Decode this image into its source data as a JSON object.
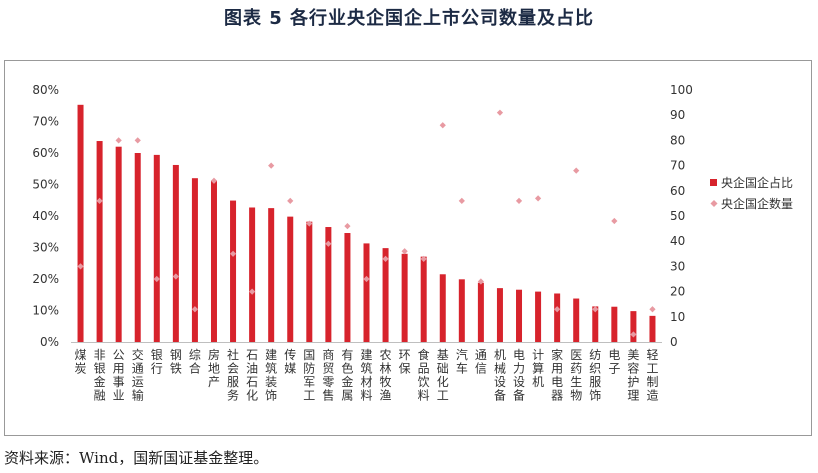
{
  "title": "图表 5  各行业央企国企上市公司数量及占比",
  "source": "资料来源：Wind，国新国证基金整理。",
  "chart_data": {
    "type": "bar",
    "categories": [
      "煤炭",
      "非银金融",
      "公用事业",
      "交通运输",
      "银行",
      "钢铁",
      "综合",
      "房地产",
      "社会服务",
      "石油石化",
      "建筑装饰",
      "传媒",
      "国防军工",
      "商贸零售",
      "有色金属",
      "建筑材料",
      "农林牧渔",
      "环保",
      "食品饮料",
      "基础化工",
      "汽车",
      "通信",
      "机械设备",
      "电力设备",
      "计算机",
      "家用电器",
      "医药生物",
      "纺织服饰",
      "电子",
      "美容护理",
      "轻工制造"
    ],
    "series": [
      {
        "name": "央企国企占比",
        "kind": "bar",
        "axis": "left",
        "color": "#d7232c",
        "values": [
          75.3,
          63.8,
          62,
          60,
          59.4,
          56.2,
          52,
          51.3,
          44.9,
          42.7,
          42.5,
          39.8,
          38.2,
          36.5,
          34.6,
          31.3,
          29.8,
          28,
          27.1,
          21.5,
          19.9,
          18.8,
          17.1,
          16.6,
          16,
          15.4,
          13.8,
          11.3,
          11.2,
          9.8,
          8.3
        ]
      },
      {
        "name": "央企国企数量",
        "kind": "scatter",
        "axis": "right",
        "color": "#e89aa2",
        "values": [
          30,
          56,
          80,
          80,
          25,
          26,
          13,
          64,
          35,
          20,
          70,
          56,
          47,
          39,
          46,
          25,
          33,
          36,
          33,
          86,
          56,
          24,
          91,
          56,
          57,
          13,
          68,
          13,
          48,
          3,
          13
        ]
      }
    ],
    "y_left": {
      "min": 0,
      "max": 80,
      "step": 10,
      "tick_labels": [
        "0%",
        "10%",
        "20%",
        "30%",
        "40%",
        "50%",
        "60%",
        "70%",
        "80%"
      ]
    },
    "y_right": {
      "min": 0,
      "max": 100,
      "step": 10,
      "tick_labels": [
        "0",
        "10",
        "20",
        "30",
        "40",
        "50",
        "60",
        "70",
        "80",
        "90",
        "100"
      ]
    },
    "legend_position": "right",
    "grid": false
  },
  "colors": {
    "bar": "#d7232c",
    "marker": "#e89aa2",
    "title": "#1c2a44"
  }
}
